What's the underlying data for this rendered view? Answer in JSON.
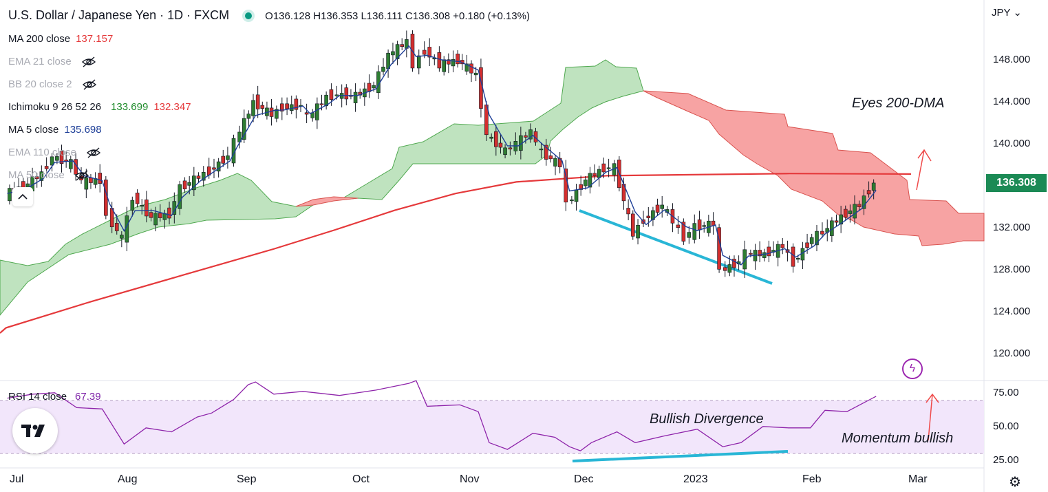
{
  "header": {
    "title": "U.S. Dollar / Japanese Yen · 1D · FXCM",
    "ohlc": {
      "o": "O136.128",
      "h": "H136.353",
      "l": "L136.111",
      "c": "C136.308",
      "chg": "+0.180 (+0.13%)"
    }
  },
  "indicators": [
    {
      "label": "MA 200 close",
      "value": "137.157",
      "value_color": "#e5393b",
      "hidden": false
    },
    {
      "label": "EMA 21 close",
      "value": "",
      "hidden": true
    },
    {
      "label": "BB 20 close 2",
      "value": "",
      "hidden": true
    },
    {
      "label": "Ichimoku 9 26 52 26",
      "value": "133.699",
      "value2": "132.347",
      "value_color": "#1e8b2a",
      "value2_color": "#e5393b",
      "hidden": false
    },
    {
      "label": "MA 5 close",
      "value": "135.698",
      "value_color": "#1e3f98",
      "hidden": false
    },
    {
      "label": "EMA 110 close",
      "value": "",
      "hidden": true
    },
    {
      "label": "MA 50 close",
      "value": "",
      "hidden": true
    }
  ],
  "price_axis": {
    "currency": "JPY",
    "last_price": "136.308"
  },
  "rsi": {
    "label": "RSI 14 close",
    "value": "67.39"
  },
  "annotations": {
    "eyes": "Eyes 200-DMA",
    "divergence": "Bullish Divergence",
    "momentum": "Momentum bullish"
  },
  "chart_data": [
    {
      "type": "candlestick",
      "title": "U.S. Dollar / Japanese Yen · 1D · FXCM",
      "x_ticks": [
        "Jul",
        "Aug",
        "Sep",
        "Oct",
        "Nov",
        "Dec",
        "2023",
        "Feb",
        "Mar"
      ],
      "y_ticks": [
        "120.000",
        "124.000",
        "128.000",
        "132.000",
        "136.000",
        "140.000",
        "144.000",
        "148.000"
      ],
      "ylim": [
        117.5,
        151.5
      ],
      "close_series": [
        [
          "2022-07-01",
          135.3
        ],
        [
          "2022-07-06",
          135.9
        ],
        [
          "2022-07-11",
          137.2
        ],
        [
          "2022-07-14",
          138.8
        ],
        [
          "2022-07-19",
          138.2
        ],
        [
          "2022-07-22",
          136.4
        ],
        [
          "2022-07-27",
          136.6
        ],
        [
          "2022-07-29",
          133.2
        ],
        [
          "2022-08-02",
          131.0
        ],
        [
          "2022-08-05",
          135.0
        ],
        [
          "2022-08-10",
          133.0
        ],
        [
          "2022-08-15",
          133.3
        ],
        [
          "2022-08-18",
          135.8
        ],
        [
          "2022-08-23",
          136.9
        ],
        [
          "2022-08-26",
          137.4
        ],
        [
          "2022-08-31",
          138.9
        ],
        [
          "2022-09-02",
          140.2
        ],
        [
          "2022-09-07",
          144.0
        ],
        [
          "2022-09-12",
          142.8
        ],
        [
          "2022-09-15",
          143.5
        ],
        [
          "2022-09-20",
          143.7
        ],
        [
          "2022-09-22",
          142.5
        ],
        [
          "2022-09-27",
          144.5
        ],
        [
          "2022-09-30",
          144.7
        ],
        [
          "2022-10-05",
          144.6
        ],
        [
          "2022-10-10",
          145.6
        ],
        [
          "2022-10-14",
          148.5
        ],
        [
          "2022-10-19",
          149.8
        ],
        [
          "2022-10-21",
          147.6
        ],
        [
          "2022-10-24",
          148.9
        ],
        [
          "2022-10-28",
          147.6
        ],
        [
          "2022-11-02",
          148.0
        ],
        [
          "2022-11-07",
          146.6
        ],
        [
          "2022-11-10",
          140.9
        ],
        [
          "2022-11-15",
          139.3
        ],
        [
          "2022-11-18",
          140.1
        ],
        [
          "2022-11-22",
          141.2
        ],
        [
          "2022-11-25",
          139.2
        ],
        [
          "2022-11-30",
          138.0
        ],
        [
          "2022-12-02",
          134.3
        ],
        [
          "2022-12-07",
          136.6
        ],
        [
          "2022-12-12",
          137.7
        ],
        [
          "2022-12-15",
          137.8
        ],
        [
          "2022-12-20",
          131.4
        ],
        [
          "2022-12-23",
          132.8
        ],
        [
          "2022-12-28",
          134.2
        ],
        [
          "2023-01-03",
          131.1
        ],
        [
          "2023-01-06",
          132.1
        ],
        [
          "2023-01-11",
          132.4
        ],
        [
          "2023-01-13",
          127.9
        ],
        [
          "2023-01-18",
          128.8
        ],
        [
          "2023-01-20",
          129.6
        ],
        [
          "2023-01-25",
          129.5
        ],
        [
          "2023-01-30",
          130.3
        ],
        [
          "2023-02-02",
          128.7
        ],
        [
          "2023-02-07",
          131.1
        ],
        [
          "2023-02-10",
          131.6
        ],
        [
          "2023-02-15",
          133.1
        ],
        [
          "2023-02-20",
          134.2
        ],
        [
          "2023-02-24",
          136.3
        ]
      ],
      "series": [
        {
          "name": "MA 200 close",
          "last": 137.157
        },
        {
          "name": "MA 5 close",
          "last": 135.698
        },
        {
          "name": "Ichimoku 9 26 52 26",
          "values": [
            133.699,
            132.347
          ]
        }
      ]
    },
    {
      "type": "line",
      "title": "RSI 14 close",
      "y_ticks": [
        "25.00",
        "50.00",
        "75.00"
      ],
      "ylim": [
        18,
        82
      ],
      "bands": [
        30,
        70
      ],
      "last": 67.39,
      "values": [
        [
          "2022-07-01",
          66
        ],
        [
          "2022-07-08",
          69
        ],
        [
          "2022-07-14",
          70
        ],
        [
          "2022-07-20",
          59
        ],
        [
          "2022-07-27",
          58
        ],
        [
          "2022-08-02",
          32
        ],
        [
          "2022-08-08",
          44
        ],
        [
          "2022-08-15",
          41
        ],
        [
          "2022-08-22",
          52
        ],
        [
          "2022-08-26",
          55
        ],
        [
          "2022-09-01",
          65
        ],
        [
          "2022-09-05",
          76
        ],
        [
          "2022-09-07",
          78
        ],
        [
          "2022-09-12",
          69
        ],
        [
          "2022-09-20",
          71
        ],
        [
          "2022-09-30",
          68
        ],
        [
          "2022-10-10",
          72
        ],
        [
          "2022-10-19",
          77
        ],
        [
          "2022-10-21",
          79
        ],
        [
          "2022-10-24",
          60
        ],
        [
          "2022-11-02",
          61
        ],
        [
          "2022-11-07",
          56
        ],
        [
          "2022-11-10",
          33
        ],
        [
          "2022-11-15",
          28
        ],
        [
          "2022-11-22",
          40
        ],
        [
          "2022-11-28",
          37
        ],
        [
          "2022-12-02",
          30
        ],
        [
          "2022-12-05",
          27
        ],
        [
          "2022-12-08",
          33
        ],
        [
          "2022-12-15",
          41
        ],
        [
          "2022-12-20",
          33
        ],
        [
          "2022-12-28",
          38
        ],
        [
          "2023-01-06",
          43
        ],
        [
          "2023-01-13",
          30
        ],
        [
          "2023-01-18",
          33
        ],
        [
          "2023-01-24",
          45
        ],
        [
          "2023-01-31",
          44
        ],
        [
          "2023-02-06",
          44
        ],
        [
          "2023-02-10",
          57
        ],
        [
          "2023-02-16",
          56
        ],
        [
          "2023-02-24",
          67.39
        ]
      ]
    }
  ]
}
